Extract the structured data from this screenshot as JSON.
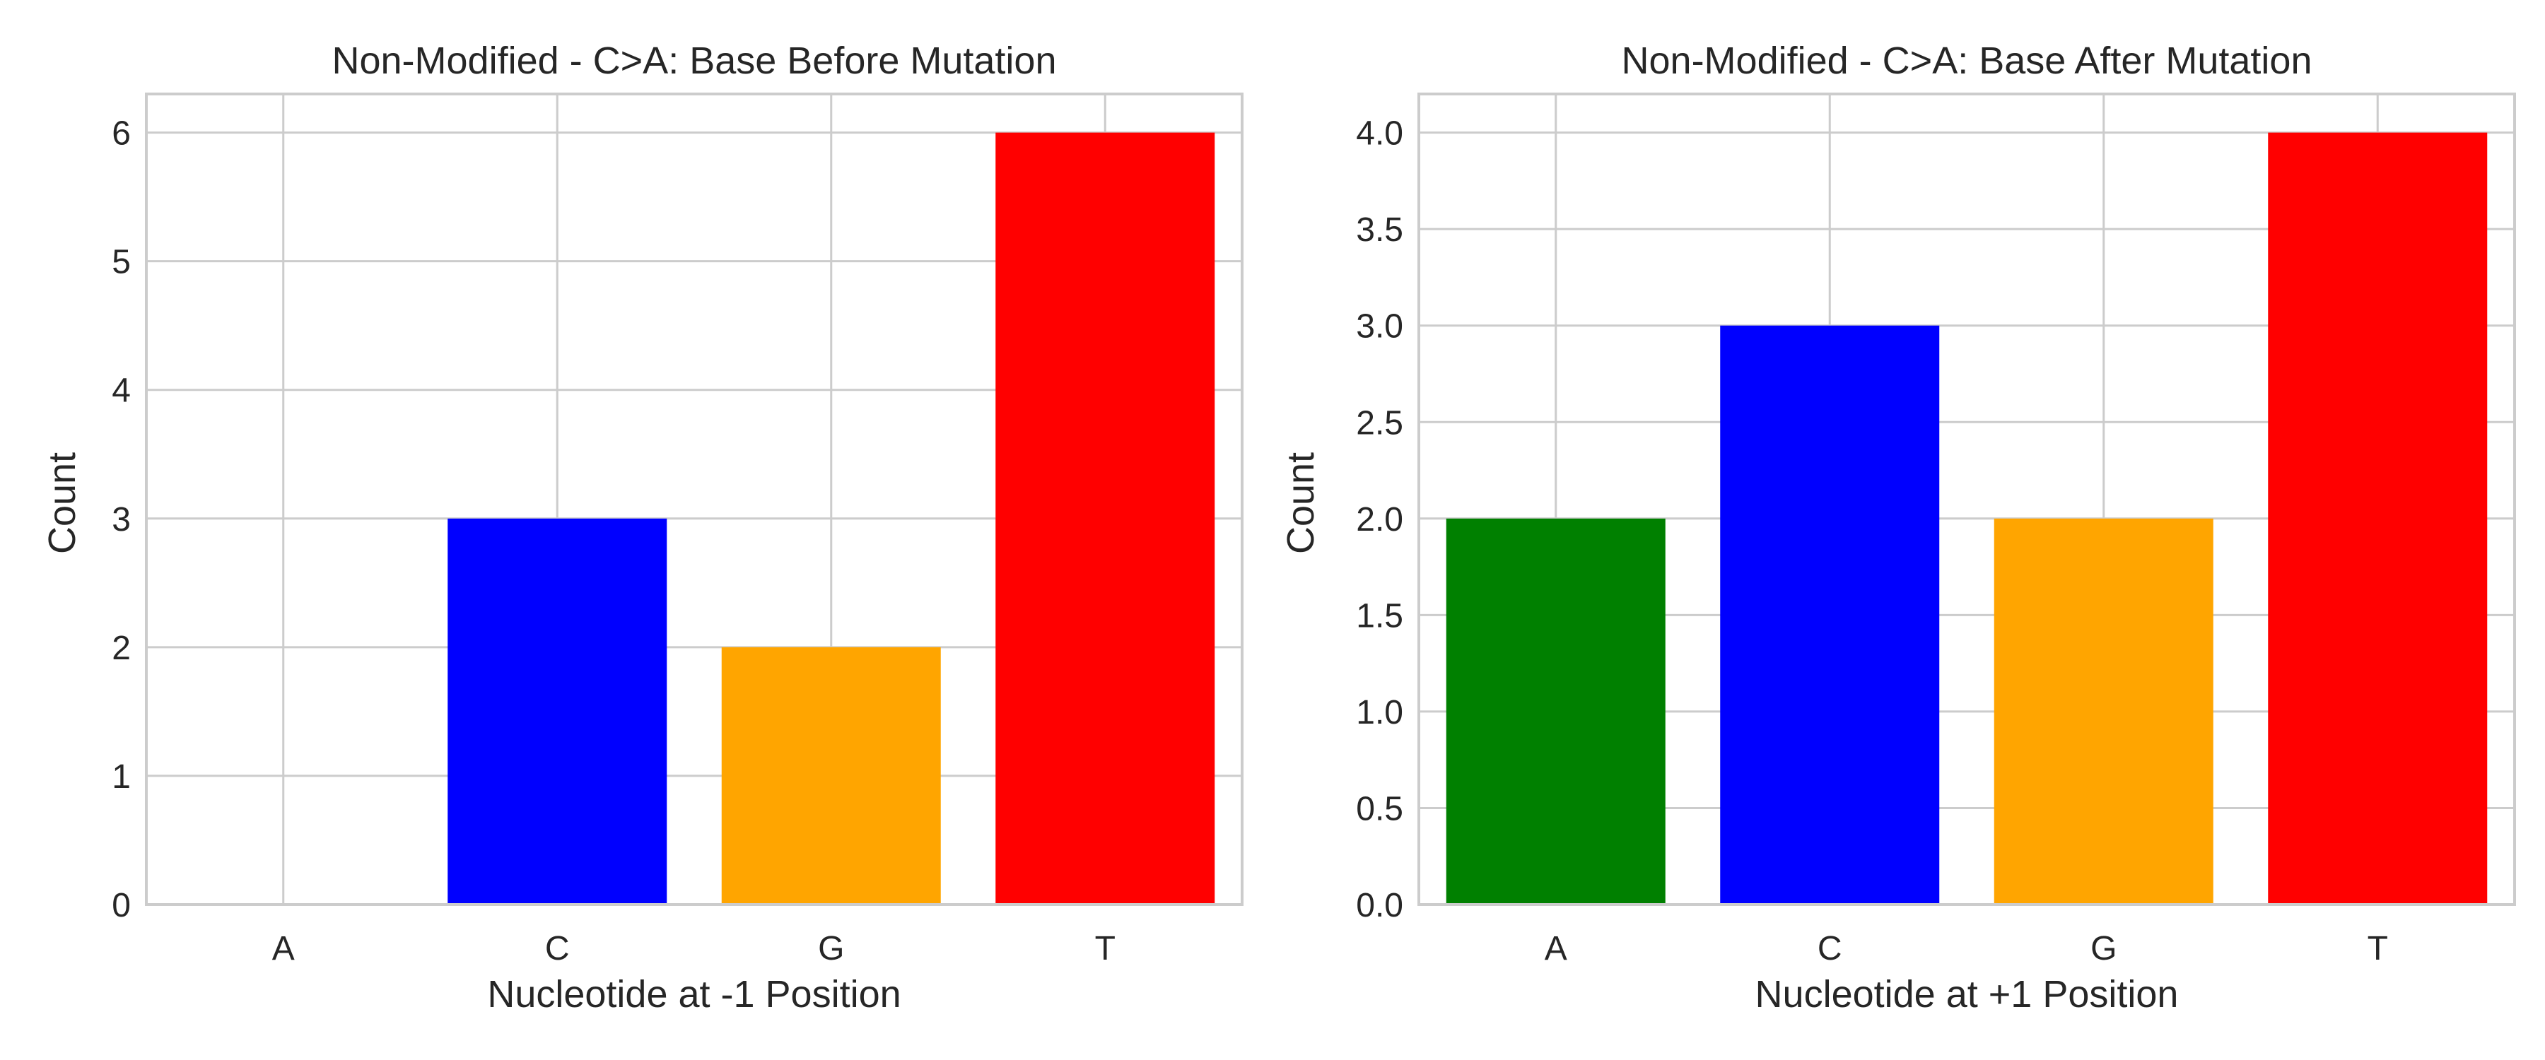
{
  "chart_data": [
    {
      "type": "bar",
      "title": "Non-Modified - C>A: Base Before Mutation",
      "xlabel": "Nucleotide at -1 Position",
      "ylabel": "Count",
      "categories": [
        "A",
        "C",
        "G",
        "T"
      ],
      "values": [
        0,
        3,
        2,
        6
      ],
      "colors": [
        "#008000",
        "#0000ff",
        "#ffa500",
        "#ff0000"
      ],
      "ylim": [
        0,
        6.3
      ],
      "yticks": [
        0,
        1,
        2,
        3,
        4,
        5,
        6
      ],
      "ytick_labels": [
        "0",
        "1",
        "2",
        "3",
        "4",
        "5",
        "6"
      ],
      "grid": true
    },
    {
      "type": "bar",
      "title": "Non-Modified - C>A: Base After Mutation",
      "xlabel": "Nucleotide at +1 Position",
      "ylabel": "Count",
      "categories": [
        "A",
        "C",
        "G",
        "T"
      ],
      "values": [
        2,
        3,
        2,
        4
      ],
      "colors": [
        "#008000",
        "#0000ff",
        "#ffa500",
        "#ff0000"
      ],
      "ylim": [
        0,
        4.2
      ],
      "yticks": [
        0,
        0.5,
        1,
        1.5,
        2,
        2.5,
        3,
        3.5,
        4
      ],
      "ytick_labels": [
        "0.0",
        "0.5",
        "1.0",
        "1.5",
        "2.0",
        "2.5",
        "3.0",
        "3.5",
        "4.0"
      ],
      "grid": true
    }
  ]
}
